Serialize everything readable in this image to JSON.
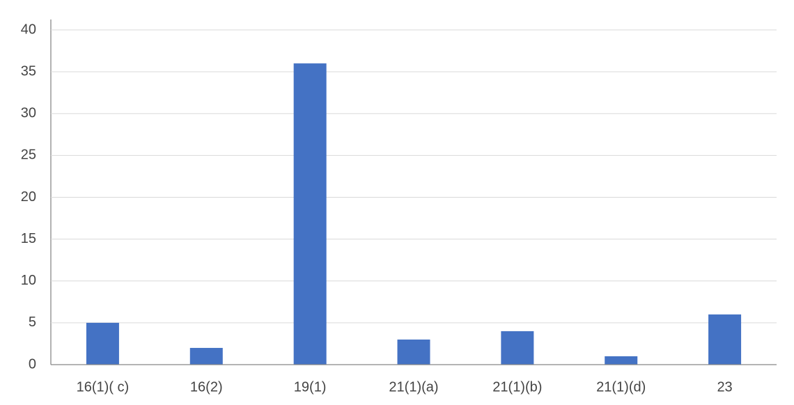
{
  "chart_data": {
    "type": "bar",
    "categories": [
      "16(1)( c)",
      "16(2)",
      "19(1)",
      "21(1)(a)",
      "21(1)(b)",
      "21(1)(d)",
      "23"
    ],
    "values": [
      5,
      2,
      36,
      3,
      4,
      1,
      6
    ],
    "color": "#4472c4",
    "ylim": [
      0,
      40
    ],
    "yticks": [
      0,
      5,
      10,
      15,
      20,
      25,
      30,
      35,
      40
    ],
    "grid": true
  }
}
